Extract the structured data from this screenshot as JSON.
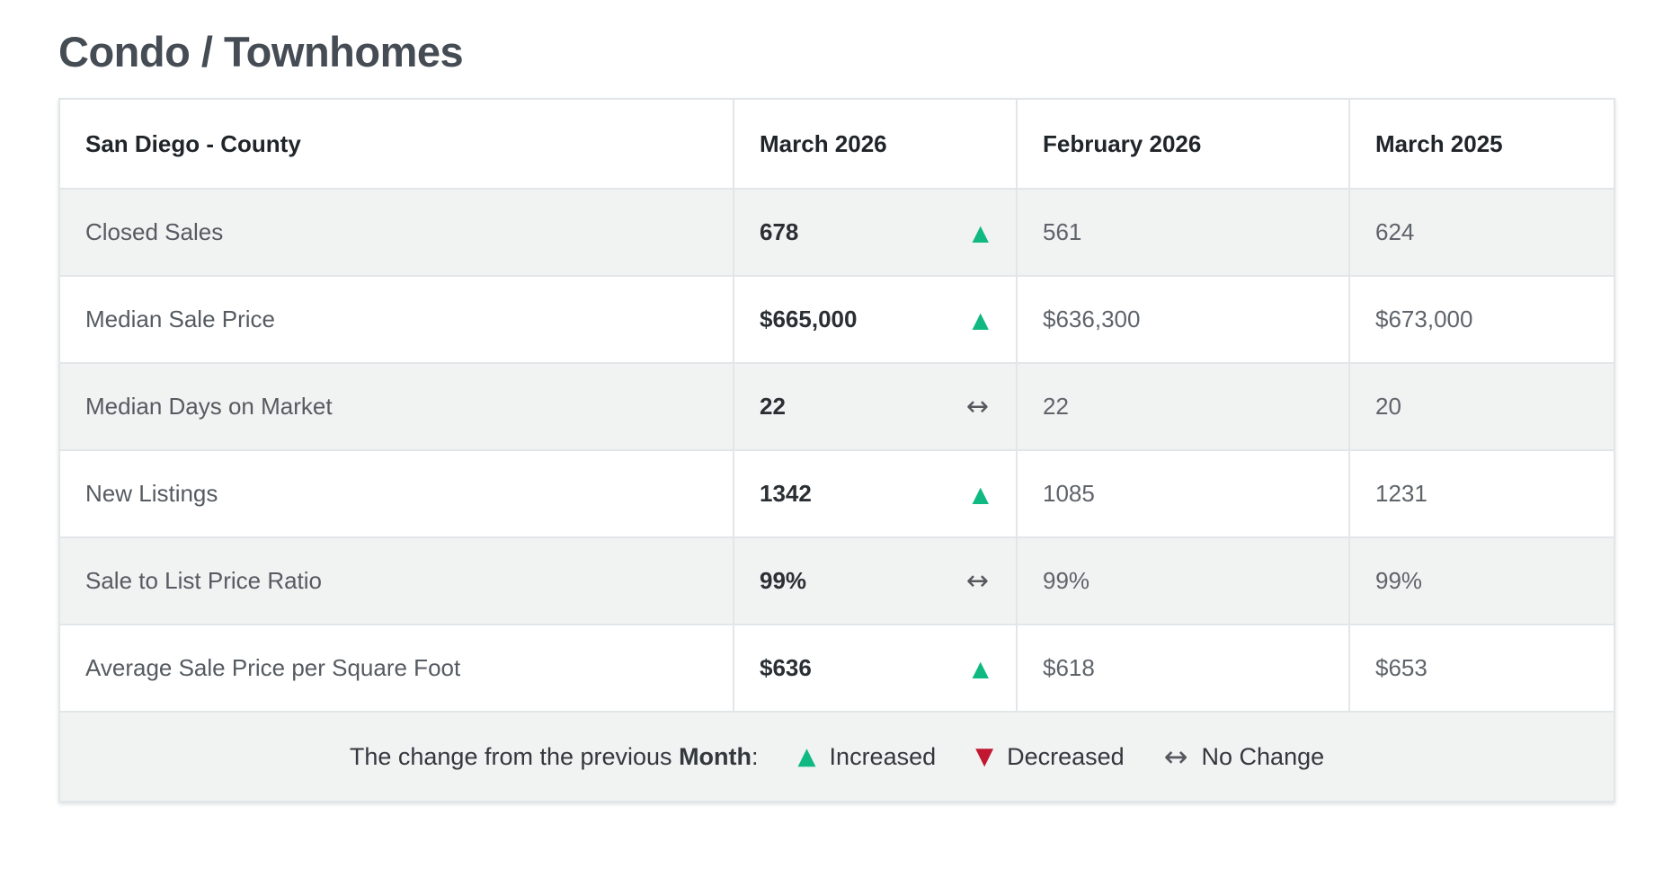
{
  "page_title": "Condo / Townhomes",
  "colors": {
    "title_text": "#454c54",
    "increased": "#10b981",
    "decreased": "#c11730",
    "no_change": "#55595e",
    "stripe_row_bg": "#f1f2f2",
    "border": "#e3e6e9"
  },
  "table": {
    "columns": [
      "San Diego - County",
      "March 2026",
      "February 2026",
      "March 2025"
    ],
    "rows": [
      {
        "label": "Closed Sales",
        "current": "678",
        "trend": "increased",
        "trend_glyph": "▲",
        "previous_month": "561",
        "previous_year": "624"
      },
      {
        "label": "Median Sale Price",
        "current": "$665,000",
        "trend": "increased",
        "trend_glyph": "▲",
        "previous_month": "$636,300",
        "previous_year": "$673,000"
      },
      {
        "label": "Median Days on Market",
        "current": "22",
        "trend": "no-change",
        "trend_glyph": "↔",
        "previous_month": "22",
        "previous_year": "20"
      },
      {
        "label": "New Listings",
        "current": "1342",
        "trend": "increased",
        "trend_glyph": "▲",
        "previous_month": "1085",
        "previous_year": "1231"
      },
      {
        "label": "Sale to List Price Ratio",
        "current": "99%",
        "trend": "no-change",
        "trend_glyph": "↔",
        "previous_month": "99%",
        "previous_year": "99%"
      },
      {
        "label": "Average Sale Price per Square Foot",
        "current": "$636",
        "trend": "increased",
        "trend_glyph": "▲",
        "previous_month": "$618",
        "previous_year": "$653"
      }
    ]
  },
  "legend": {
    "prefix": "The change from the previous ",
    "bold_word": "Month",
    "colon": ":",
    "items": [
      {
        "glyph": "▲",
        "label": "Increased",
        "type": "increased"
      },
      {
        "glyph": "▼",
        "label": "Decreased",
        "type": "decreased"
      },
      {
        "glyph": "↔",
        "label": "No Change",
        "type": "no-change"
      }
    ]
  }
}
